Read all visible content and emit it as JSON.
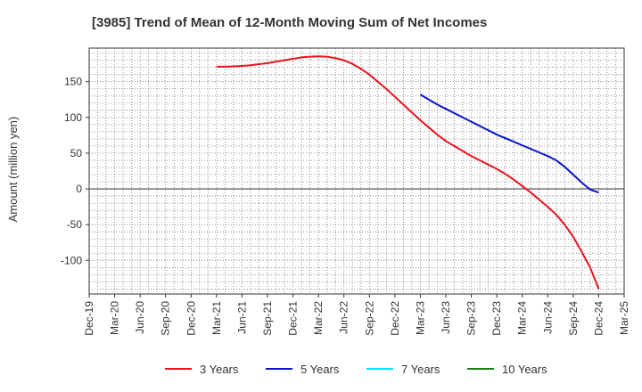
{
  "chart_data": {
    "type": "line",
    "title": "[3985]  Trend of Mean of 12-Month Moving Sum of Net Incomes",
    "ylabel": "Amount (million yen)",
    "xlabel": "",
    "x_ticks": [
      "Dec-19",
      "Mar-20",
      "Jun-20",
      "Sep-20",
      "Dec-20",
      "Mar-21",
      "Jun-21",
      "Sep-21",
      "Dec-21",
      "Mar-22",
      "Jun-22",
      "Sep-22",
      "Dec-22",
      "Mar-23",
      "Jun-23",
      "Sep-23",
      "Dec-23",
      "Mar-24",
      "Jun-24",
      "Sep-24",
      "Dec-24",
      "Mar-25"
    ],
    "y_ticks": [
      150,
      100,
      50,
      0,
      -50,
      -100
    ],
    "ylim": [
      -147,
      197
    ],
    "grid": true,
    "legend_position": "bottom",
    "series": [
      {
        "name": "3 Years",
        "color": "#e8141e",
        "x": [
          "Mar-21",
          "Apr-21",
          "May-21",
          "Jun-21",
          "Jul-21",
          "Aug-21",
          "Sep-21",
          "Oct-21",
          "Nov-21",
          "Dec-21",
          "Jan-22",
          "Feb-22",
          "Mar-22",
          "Apr-22",
          "May-22",
          "Jun-22",
          "Jul-22",
          "Aug-22",
          "Sep-22",
          "Oct-22",
          "Nov-22",
          "Dec-22",
          "Jan-23",
          "Feb-23",
          "Mar-23",
          "Apr-23",
          "May-23",
          "Jun-23",
          "Jul-23",
          "Aug-23",
          "Sep-23",
          "Oct-23",
          "Nov-23",
          "Dec-23",
          "Jan-24",
          "Feb-24",
          "Mar-24",
          "Apr-24",
          "May-24",
          "Jun-24",
          "Jul-24",
          "Aug-24",
          "Sep-24",
          "Oct-24",
          "Nov-24",
          "Dec-24"
        ],
        "values": [
          171,
          171,
          171.5,
          172,
          173,
          174.5,
          176,
          178,
          180,
          182,
          184,
          185,
          185.5,
          185,
          183,
          180,
          175,
          168,
          160,
          150,
          140,
          129,
          118,
          107,
          96,
          86,
          76,
          67,
          60,
          53,
          46,
          40,
          34,
          28,
          21,
          13,
          4,
          -5,
          -15,
          -25,
          -36,
          -50,
          -67,
          -88,
          -110,
          -140
        ]
      },
      {
        "name": "5 Years",
        "color": "#0a14c8",
        "x": [
          "Mar-23",
          "Apr-23",
          "May-23",
          "Jun-23",
          "Jul-23",
          "Aug-23",
          "Sep-23",
          "Oct-23",
          "Nov-23",
          "Dec-23",
          "Jan-24",
          "Feb-24",
          "Mar-24",
          "Apr-24",
          "May-24",
          "Jun-24",
          "Jul-24",
          "Aug-24",
          "Sep-24",
          "Oct-24",
          "Nov-24",
          "Dec-24"
        ],
        "values": [
          132,
          125,
          118,
          112,
          106,
          100,
          94,
          88,
          82,
          76,
          71,
          66,
          61,
          56,
          51,
          46,
          40,
          31,
          20,
          9,
          -1,
          -5
        ]
      },
      {
        "name": "7 Years",
        "color": "#00e5ee",
        "x": [],
        "values": []
      },
      {
        "name": "10 Years",
        "color": "#1a7d1a",
        "x": [],
        "values": []
      }
    ]
  }
}
